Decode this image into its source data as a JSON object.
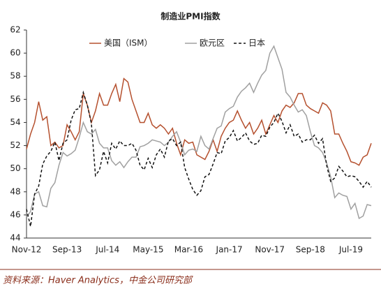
{
  "chart_data": {
    "type": "line",
    "title": "制造业PMI指数",
    "source": "资料来源：Haver Analytics，中金公司研究部",
    "categories": [
      "Nov-12",
      null,
      null,
      null,
      null,
      null,
      null,
      null,
      null,
      null,
      "Sep-13",
      null,
      null,
      null,
      null,
      null,
      null,
      null,
      null,
      null,
      "Jul-14",
      null,
      null,
      null,
      null,
      null,
      null,
      null,
      null,
      null,
      "May-15",
      null,
      null,
      null,
      null,
      null,
      null,
      null,
      null,
      null,
      "Mar-16",
      null,
      null,
      null,
      null,
      null,
      null,
      null,
      null,
      null,
      "Jan-17",
      null,
      null,
      null,
      null,
      null,
      null,
      null,
      null,
      null,
      "Nov-17",
      null,
      null,
      null,
      null,
      null,
      null,
      null,
      null,
      null,
      "Sep-18",
      null,
      null,
      null,
      null,
      null,
      null,
      null,
      null,
      null,
      "Jul-19",
      null,
      null,
      null,
      null,
      null
    ],
    "series": [
      {
        "name": "美国（ISM）",
        "color": "#b5502e",
        "dash": false,
        "values": [
          51.7,
          53,
          54,
          55.8,
          54.2,
          54.5,
          52,
          52.3,
          51.8,
          52,
          53.8,
          53.2,
          52.5,
          53.2,
          56.5,
          55.5,
          54,
          55,
          56.5,
          55.5,
          55.5,
          56.5,
          57.3,
          55.8,
          57.8,
          57.5,
          56,
          55,
          54,
          54,
          54.8,
          53.8,
          53.5,
          53.8,
          53.5,
          53,
          53.5,
          52.2,
          51.2,
          52.5,
          52.2,
          52.3,
          51.2,
          51,
          50.8,
          51.5,
          52.5,
          51.5,
          52.8,
          53.5,
          54,
          54.2,
          55,
          54.2,
          53.5,
          54,
          53,
          53.5,
          54.2,
          53,
          53.8,
          54.6,
          54,
          55,
          55.5,
          55.3,
          55.7,
          56.5,
          56.5,
          55.5,
          55.2,
          55,
          54.8,
          55.7,
          55.5,
          55,
          53,
          53,
          52.2,
          51.5,
          50.6,
          50.5,
          50.3,
          51,
          51.2,
          52.2
        ]
      },
      {
        "name": "欧元区",
        "color": "#a0a0a0",
        "dash": false,
        "values": [
          45.8,
          46.3,
          47.8,
          48,
          46.8,
          46.7,
          48.3,
          48.8,
          50.3,
          51.4,
          51.1,
          51.3,
          51.6,
          52.7,
          54,
          53.2,
          53,
          53.4,
          52.2,
          51.8,
          51.8,
          50.7,
          50.3,
          50.6,
          50.1,
          50.6,
          51,
          51,
          51.9,
          52,
          52.2,
          52.5,
          52.4,
          52.3,
          52,
          52.3,
          52.8,
          53.2,
          52.3,
          51.2,
          51.6,
          51.7,
          51.5,
          52.8,
          52,
          51.7,
          52.6,
          53.5,
          53.7,
          54.9,
          55.2,
          55.4,
          56.2,
          56.7,
          57,
          57.4,
          56.6,
          57.4,
          58.1,
          58.5,
          60,
          60.6,
          59.6,
          58.6,
          56.6,
          56.2,
          55.5,
          54.9,
          55.1,
          54.6,
          53.2,
          52,
          51.8,
          51.4,
          50.5,
          49.3,
          47.5,
          47.9,
          47.7,
          47.6,
          46.5,
          47,
          45.7,
          45.9,
          46.9,
          46.8
        ]
      },
      {
        "name": "日本",
        "color": "#111111",
        "dash": true,
        "values": [
          46.5,
          45,
          47.8,
          48.5,
          50.4,
          51.1,
          51.5,
          52.3,
          50.7,
          52.2,
          52.5,
          54.2,
          55.1,
          55.2,
          56.6,
          55.5,
          53.9,
          49.4,
          49.9,
          51.5,
          50.5,
          52.2,
          51.7,
          52.4,
          52,
          52,
          52.2,
          51.6,
          50.3,
          49.9,
          50.9,
          50.1,
          51.2,
          51.7,
          51,
          52.4,
          52.6,
          52,
          52.3,
          50.1,
          49.1,
          48.2,
          47.7,
          48.1,
          49.3,
          49.5,
          50.4,
          51.4,
          51.3,
          52.4,
          52.7,
          53.3,
          52.4,
          52.7,
          53.1,
          52.4,
          52.1,
          52.2,
          52.9,
          52.8,
          53.6,
          54,
          54.8,
          54.1,
          53.1,
          53.8,
          52.8,
          53,
          52.3,
          52.5,
          52.5,
          52.9,
          52.2,
          52.6,
          50.3,
          48.9,
          49.2,
          50.2,
          49.8,
          49.3,
          49.4,
          49.3,
          48.9,
          48.4,
          48.9,
          48.4
        ]
      }
    ],
    "ylim": [
      44,
      62
    ],
    "yticks": [
      44,
      46,
      48,
      50,
      52,
      54,
      56,
      58,
      60,
      62
    ],
    "grid": false
  }
}
